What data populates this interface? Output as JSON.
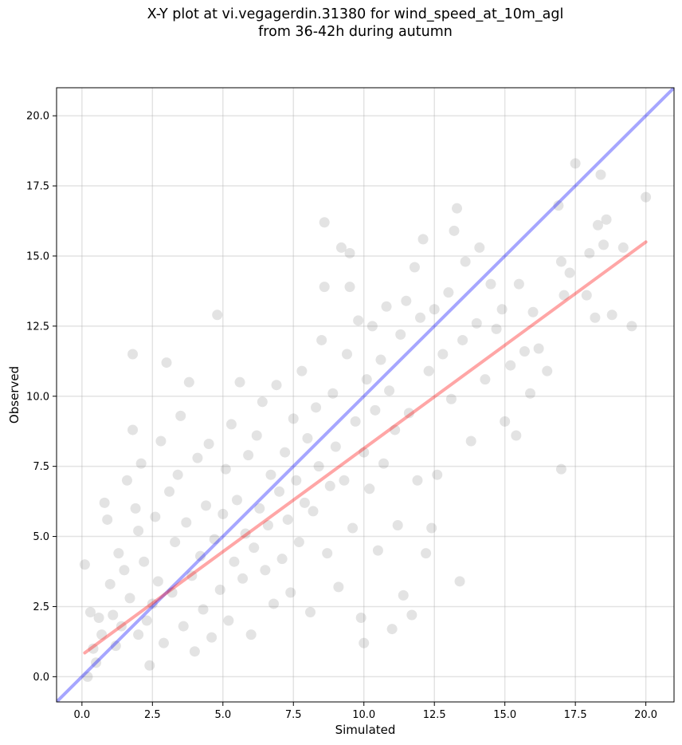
{
  "chart_data": {
    "type": "scatter",
    "title": [
      "X-Y plot at vi.vegagerdin.31380 for wind_speed_at_10m_agl",
      "from 36-42h during autumn"
    ],
    "xlabel": "Simulated",
    "ylabel": "Observed",
    "xlim": [
      -0.9,
      21.0
    ],
    "ylim": [
      -0.9,
      21.0
    ],
    "xticks": [
      0.0,
      2.5,
      5.0,
      7.5,
      10.0,
      12.5,
      15.0,
      17.5,
      20.0
    ],
    "xtick_labels": [
      "0.0",
      "2.5",
      "5.0",
      "7.5",
      "10.0",
      "12.5",
      "15.0",
      "17.5",
      "20.0"
    ],
    "yticks": [
      0.0,
      2.5,
      5.0,
      7.5,
      10.0,
      12.5,
      15.0,
      17.5,
      20.0
    ],
    "ytick_labels": [
      "0.0",
      "2.5",
      "5.0",
      "7.5",
      "10.0",
      "12.5",
      "15.0",
      "17.5",
      "20.0"
    ],
    "grid": true,
    "marker_color": "#404040",
    "marker_alpha": 0.15,
    "series": [
      {
        "kind": "points",
        "points": [
          [
            0.1,
            4.0
          ],
          [
            0.2,
            0.0
          ],
          [
            0.3,
            2.3
          ],
          [
            0.4,
            1.0
          ],
          [
            0.5,
            0.5
          ],
          [
            0.6,
            2.1
          ],
          [
            0.7,
            1.5
          ],
          [
            0.8,
            6.2
          ],
          [
            0.9,
            5.6
          ],
          [
            1.0,
            3.3
          ],
          [
            1.1,
            2.2
          ],
          [
            1.2,
            1.1
          ],
          [
            1.3,
            4.4
          ],
          [
            1.4,
            1.8
          ],
          [
            1.5,
            3.8
          ],
          [
            1.6,
            7.0
          ],
          [
            1.7,
            2.8
          ],
          [
            1.8,
            11.5
          ],
          [
            1.8,
            8.8
          ],
          [
            1.9,
            6.0
          ],
          [
            2.0,
            1.5
          ],
          [
            2.0,
            5.2
          ],
          [
            2.1,
            7.6
          ],
          [
            2.2,
            4.1
          ],
          [
            2.3,
            2.0
          ],
          [
            2.4,
            0.4
          ],
          [
            2.5,
            2.6
          ],
          [
            2.6,
            5.7
          ],
          [
            2.7,
            3.4
          ],
          [
            2.8,
            8.4
          ],
          [
            2.9,
            1.2
          ],
          [
            3.0,
            11.2
          ],
          [
            3.1,
            6.6
          ],
          [
            3.2,
            3.0
          ],
          [
            3.3,
            4.8
          ],
          [
            3.4,
            7.2
          ],
          [
            3.5,
            9.3
          ],
          [
            3.6,
            1.8
          ],
          [
            3.7,
            5.5
          ],
          [
            3.8,
            10.5
          ],
          [
            3.9,
            3.6
          ],
          [
            4.0,
            0.9
          ],
          [
            4.1,
            7.8
          ],
          [
            4.2,
            4.3
          ],
          [
            4.3,
            2.4
          ],
          [
            4.4,
            6.1
          ],
          [
            4.5,
            8.3
          ],
          [
            4.6,
            1.4
          ],
          [
            4.7,
            4.9
          ],
          [
            4.8,
            12.9
          ],
          [
            4.9,
            3.1
          ],
          [
            5.0,
            5.8
          ],
          [
            5.1,
            7.4
          ],
          [
            5.2,
            2.0
          ],
          [
            5.3,
            9.0
          ],
          [
            5.4,
            4.1
          ],
          [
            5.5,
            6.3
          ],
          [
            5.6,
            10.5
          ],
          [
            5.7,
            3.5
          ],
          [
            5.8,
            5.1
          ],
          [
            5.9,
            7.9
          ],
          [
            6.0,
            1.5
          ],
          [
            6.1,
            4.6
          ],
          [
            6.2,
            8.6
          ],
          [
            6.3,
            6.0
          ],
          [
            6.4,
            9.8
          ],
          [
            6.5,
            3.8
          ],
          [
            6.6,
            5.4
          ],
          [
            6.7,
            7.2
          ],
          [
            6.8,
            2.6
          ],
          [
            6.9,
            10.4
          ],
          [
            7.0,
            6.6
          ],
          [
            7.1,
            4.2
          ],
          [
            7.2,
            8.0
          ],
          [
            7.3,
            5.6
          ],
          [
            7.4,
            3.0
          ],
          [
            7.5,
            9.2
          ],
          [
            7.6,
            7.0
          ],
          [
            7.7,
            4.8
          ],
          [
            7.8,
            10.9
          ],
          [
            7.9,
            6.2
          ],
          [
            8.0,
            8.5
          ],
          [
            8.1,
            2.3
          ],
          [
            8.2,
            5.9
          ],
          [
            8.3,
            9.6
          ],
          [
            8.4,
            7.5
          ],
          [
            8.5,
            12.0
          ],
          [
            8.6,
            16.2
          ],
          [
            8.6,
            13.9
          ],
          [
            8.7,
            4.4
          ],
          [
            8.8,
            6.8
          ],
          [
            8.9,
            10.1
          ],
          [
            9.0,
            8.2
          ],
          [
            9.1,
            3.2
          ],
          [
            9.2,
            15.3
          ],
          [
            9.3,
            7.0
          ],
          [
            9.4,
            11.5
          ],
          [
            9.5,
            15.1
          ],
          [
            9.5,
            13.9
          ],
          [
            9.6,
            5.3
          ],
          [
            9.7,
            9.1
          ],
          [
            9.8,
            12.7
          ],
          [
            9.9,
            2.1
          ],
          [
            10.0,
            1.2
          ],
          [
            10.0,
            8.0
          ],
          [
            10.1,
            10.6
          ],
          [
            10.2,
            6.7
          ],
          [
            10.3,
            12.5
          ],
          [
            10.4,
            9.5
          ],
          [
            10.5,
            4.5
          ],
          [
            10.6,
            11.3
          ],
          [
            10.7,
            7.6
          ],
          [
            10.8,
            13.2
          ],
          [
            10.9,
            10.2
          ],
          [
            11.0,
            1.7
          ],
          [
            11.1,
            8.8
          ],
          [
            11.2,
            5.4
          ],
          [
            11.3,
            12.2
          ],
          [
            11.4,
            2.9
          ],
          [
            11.5,
            13.4
          ],
          [
            11.6,
            9.4
          ],
          [
            11.7,
            2.2
          ],
          [
            11.8,
            14.6
          ],
          [
            11.9,
            7.0
          ],
          [
            12.0,
            12.8
          ],
          [
            12.1,
            15.6
          ],
          [
            12.2,
            4.4
          ],
          [
            12.3,
            10.9
          ],
          [
            12.4,
            5.3
          ],
          [
            12.5,
            13.1
          ],
          [
            12.6,
            7.2
          ],
          [
            12.8,
            11.5
          ],
          [
            13.0,
            13.7
          ],
          [
            13.1,
            9.9
          ],
          [
            13.2,
            15.9
          ],
          [
            13.3,
            16.7
          ],
          [
            13.4,
            3.4
          ],
          [
            13.5,
            12.0
          ],
          [
            13.6,
            14.8
          ],
          [
            13.8,
            8.4
          ],
          [
            14.0,
            12.6
          ],
          [
            14.1,
            15.3
          ],
          [
            14.3,
            10.6
          ],
          [
            14.5,
            14.0
          ],
          [
            14.7,
            12.4
          ],
          [
            14.9,
            13.1
          ],
          [
            15.0,
            9.1
          ],
          [
            15.2,
            11.1
          ],
          [
            15.4,
            8.6
          ],
          [
            15.5,
            14.0
          ],
          [
            15.7,
            11.6
          ],
          [
            15.9,
            10.1
          ],
          [
            16.0,
            13.0
          ],
          [
            16.2,
            11.7
          ],
          [
            16.5,
            10.9
          ],
          [
            16.9,
            16.8
          ],
          [
            17.0,
            14.8
          ],
          [
            17.0,
            7.4
          ],
          [
            17.1,
            13.6
          ],
          [
            17.3,
            14.4
          ],
          [
            17.5,
            18.3
          ],
          [
            17.9,
            13.6
          ],
          [
            18.0,
            15.1
          ],
          [
            18.2,
            12.8
          ],
          [
            18.3,
            16.1
          ],
          [
            18.4,
            17.9
          ],
          [
            18.5,
            15.4
          ],
          [
            18.6,
            16.3
          ],
          [
            18.8,
            12.9
          ],
          [
            19.2,
            15.3
          ],
          [
            19.5,
            12.5
          ],
          [
            20.0,
            17.1
          ]
        ]
      },
      {
        "kind": "line",
        "label_role": "1:1 reference",
        "color": "#0000ff",
        "alpha": 0.35,
        "x": [
          -0.9,
          21.0
        ],
        "y": [
          -0.9,
          21.0
        ]
      },
      {
        "kind": "line",
        "label_role": "regression fit",
        "color": "#ff0000",
        "alpha": 0.35,
        "x": [
          0.1,
          20.0
        ],
        "y": [
          0.85,
          15.5
        ]
      }
    ]
  }
}
